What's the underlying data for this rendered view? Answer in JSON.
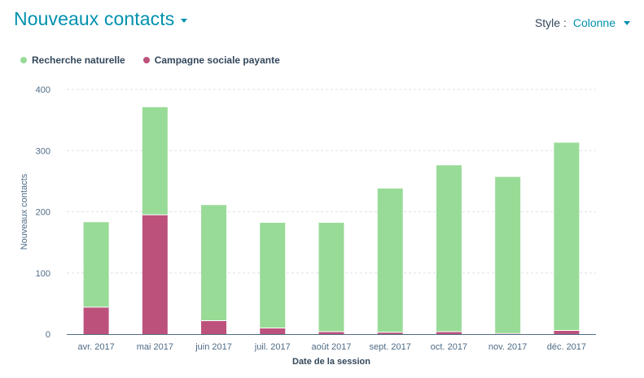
{
  "header": {
    "title": "Nouveaux contacts",
    "style_label": "Style :",
    "style_value": "Colonne"
  },
  "colors": {
    "accent": "#0091ae",
    "organic": "#98db97",
    "paid": "#bc527c",
    "axis": "#4f6b86",
    "grid": "#dbe1e8"
  },
  "chart_data": {
    "type": "bar",
    "stacked": true,
    "categories": [
      "avr. 2017",
      "mai 2017",
      "juin 2017",
      "juil. 2017",
      "août 2017",
      "sept. 2017",
      "oct. 2017",
      "nov. 2017",
      "déc. 2017"
    ],
    "series": [
      {
        "name": "Campagne sociale payante",
        "color": "#bc527c",
        "values": [
          44,
          195,
          22,
          10,
          4,
          3,
          4,
          1,
          6
        ]
      },
      {
        "name": "Recherche naturelle",
        "color": "#98db97",
        "values": [
          139,
          176,
          189,
          172,
          178,
          235,
          272,
          256,
          307
        ]
      }
    ],
    "legend": [
      {
        "name": "Recherche naturelle",
        "color": "#98db97"
      },
      {
        "name": "Campagne sociale payante",
        "color": "#bc527c"
      }
    ],
    "legend_position": "top-left",
    "xlabel": "Date de la session",
    "ylabel": "Nouveaux contacts",
    "ylim": [
      0,
      400
    ],
    "yticks": [
      0,
      100,
      200,
      300,
      400
    ],
    "grid": true
  }
}
